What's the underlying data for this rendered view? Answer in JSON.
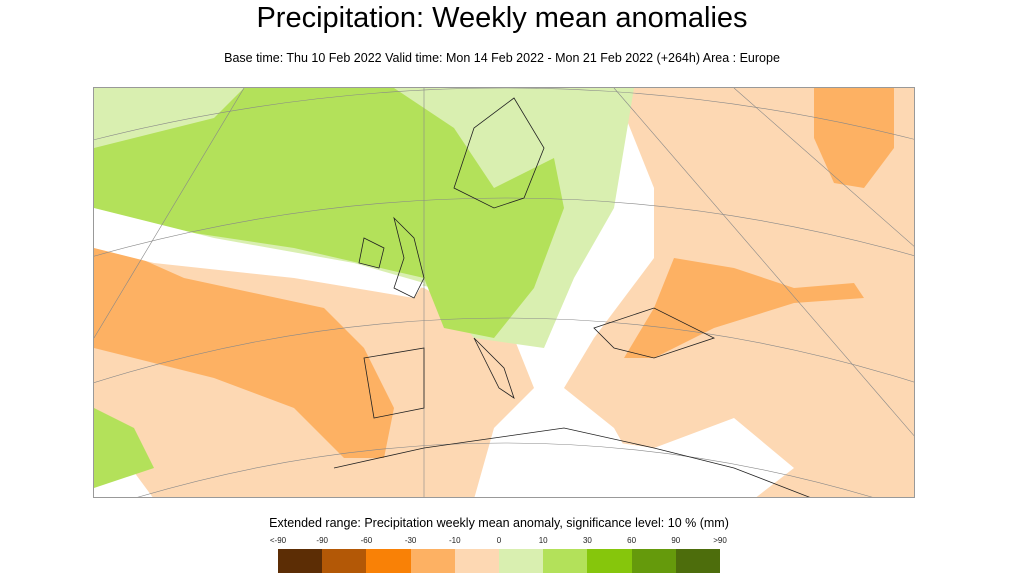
{
  "title": "Precipitation: Weekly mean anomalies",
  "subtitle": "Base time: Thu 10 Feb 2022 Valid time: Mon 14 Feb 2022 - Mon 21 Feb 2022 (+264h) Area : Europe",
  "map": {
    "area": "Europe",
    "variable": "Precipitation weekly mean anomaly"
  },
  "legend": {
    "title": "Extended range: Precipitation weekly mean anomaly, significance level: 10 % (mm)",
    "labels": [
      "<-90",
      "-90",
      "-60",
      "-30",
      "-10",
      "0",
      "10",
      "30",
      "60",
      "90",
      ">90"
    ],
    "colors": [
      "#5c2d05",
      "#b35806",
      "#f98106",
      "#fdb163",
      "#fdd8b3",
      "#d9efb0",
      "#b3e15a",
      "#86c60c",
      "#659a0c",
      "#4d6d0c"
    ]
  }
}
